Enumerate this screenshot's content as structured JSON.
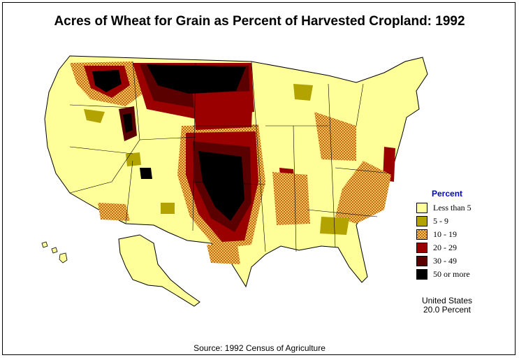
{
  "title": "Acres of Wheat for Grain as Percent of Harvested Cropland:  1992",
  "legend": {
    "title": "Percent",
    "items": [
      {
        "label": "Less than 5",
        "color": "#ffff99"
      },
      {
        "label": "5  -  9",
        "color": "#b3a300"
      },
      {
        "label": "10  -  19",
        "color": "#e0a020",
        "pattern": "checker"
      },
      {
        "label": "20  -  29",
        "color": "#9a0000"
      },
      {
        "label": "30  -  49",
        "color": "#5a0000"
      },
      {
        "label": "50 or more",
        "color": "#000000"
      }
    ]
  },
  "total": {
    "line1": "United States",
    "line2": "20.0 Percent"
  },
  "source": "Source:  1992 Census of Agriculture"
}
